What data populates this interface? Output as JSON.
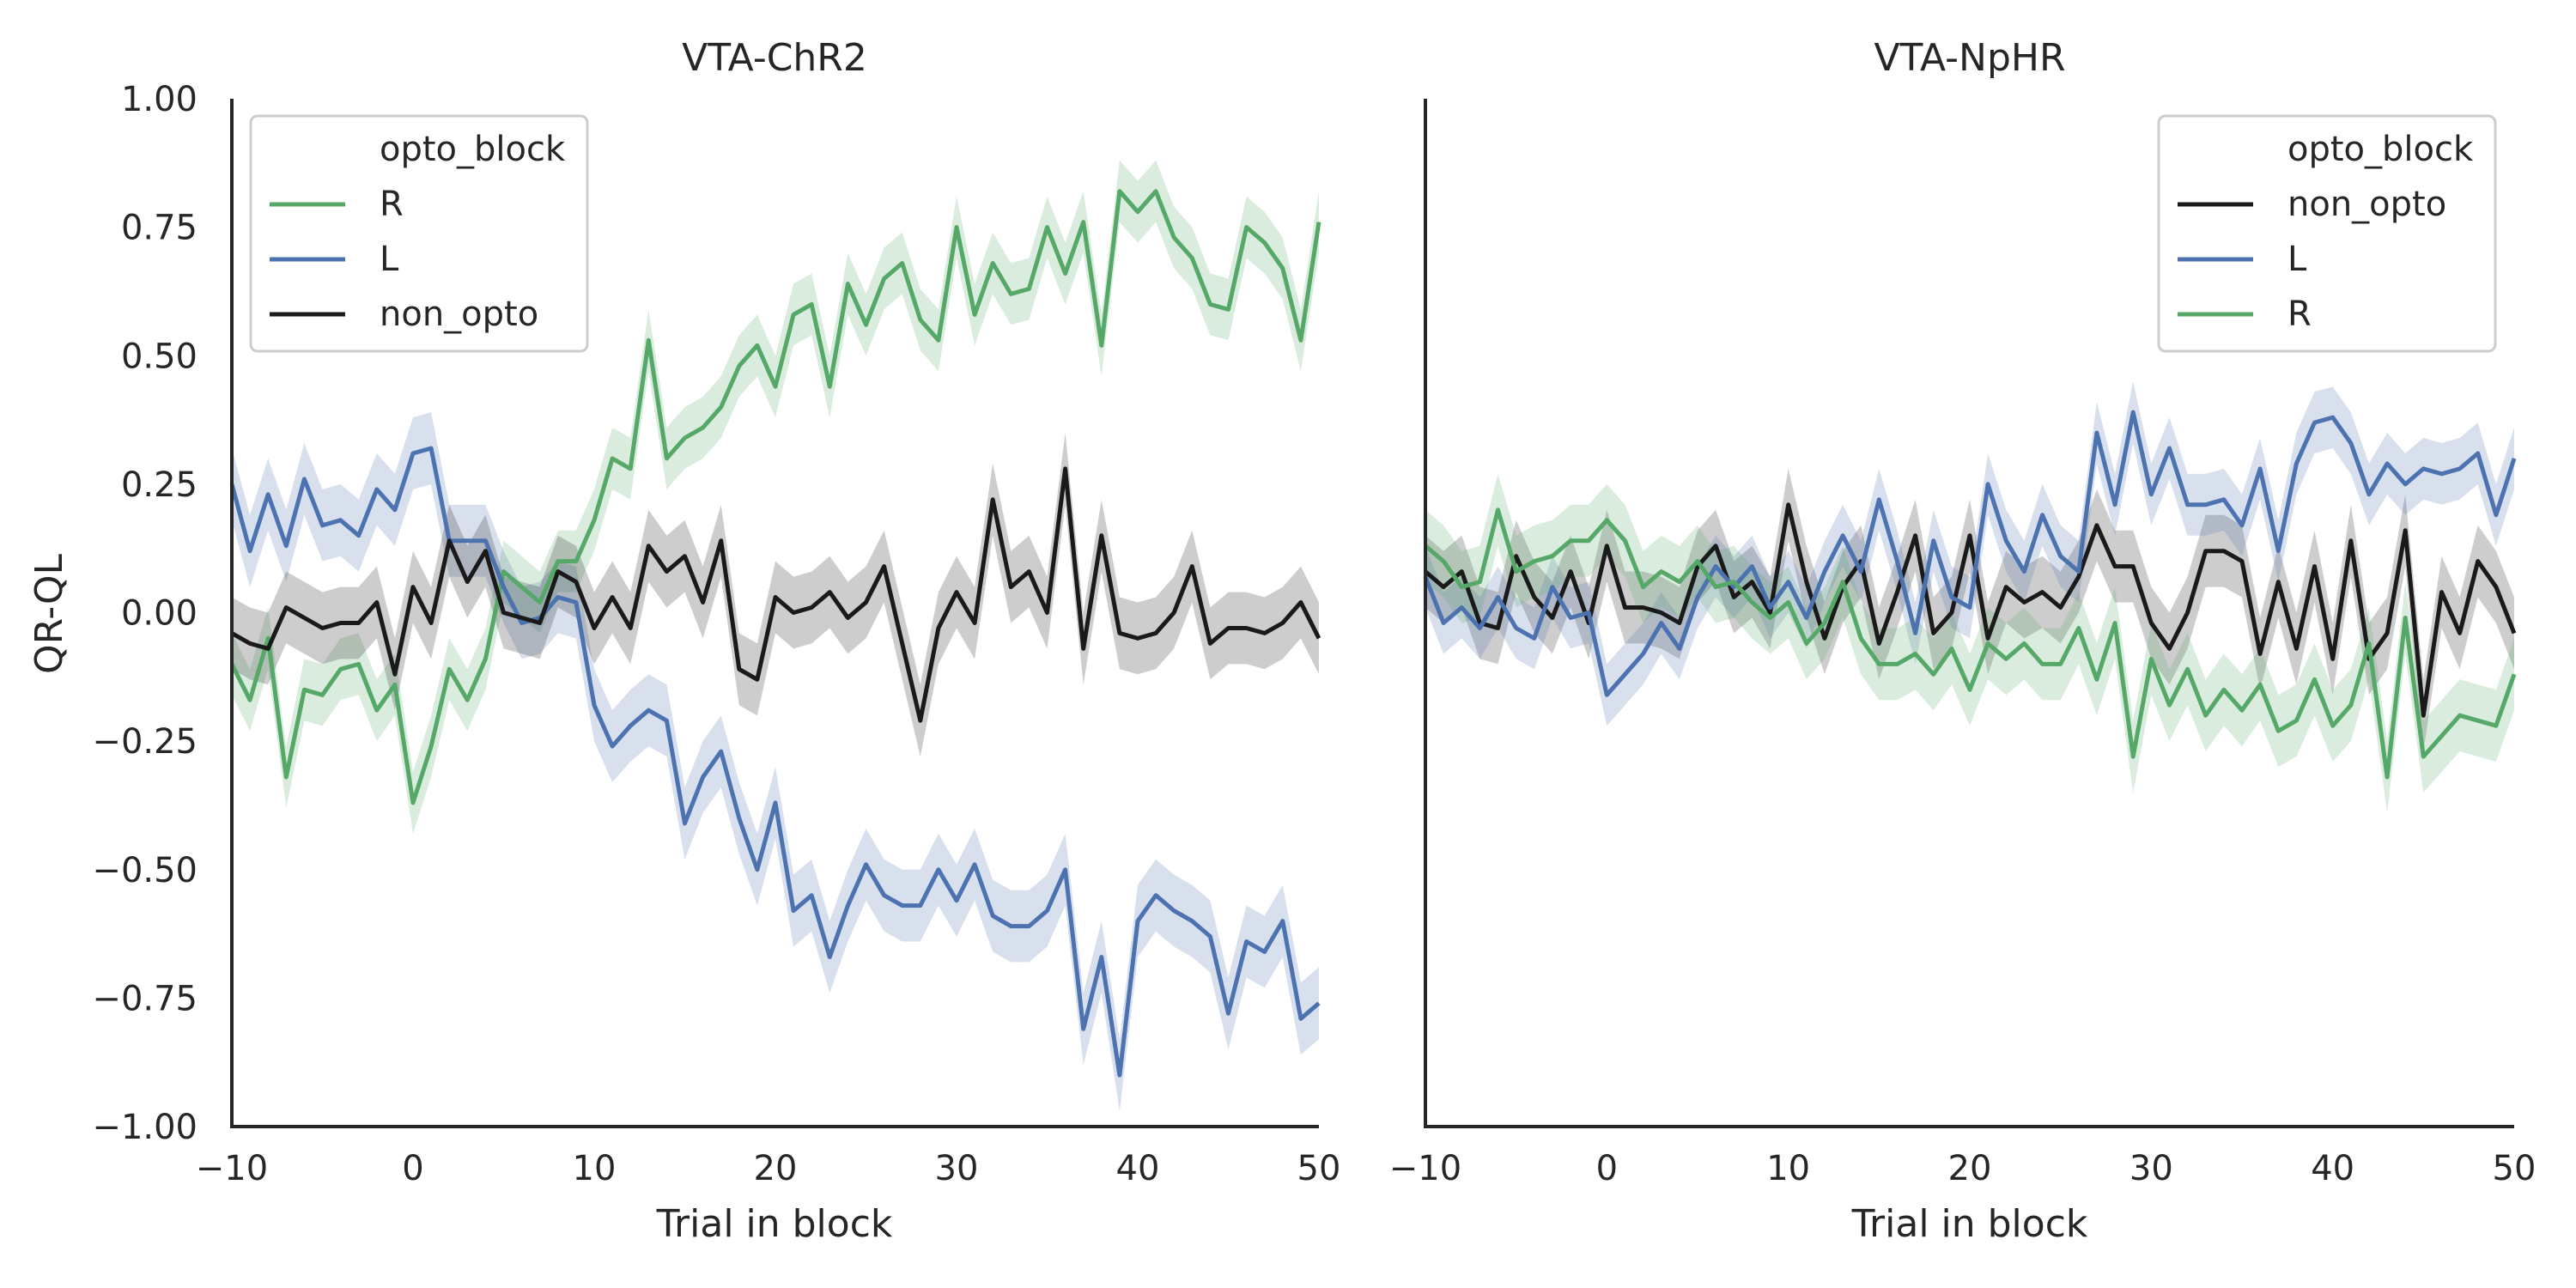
{
  "figure": {
    "ylabel": "QR-QL",
    "xlabel": "Trial in block",
    "legend_title": "opto_block",
    "x_ticks": [
      "−10",
      "0",
      "10",
      "20",
      "30",
      "40",
      "50"
    ],
    "y_ticks": [
      "1.00",
      "0.75",
      "0.50",
      "0.25",
      "0.00",
      "−0.25",
      "−0.50",
      "−0.75",
      "−1.00"
    ]
  },
  "colors": {
    "R": "#55a868",
    "L": "#4c72b0",
    "non_opto": "#1a1a1a",
    "axis": "#262626",
    "legend_border": "#cccccc"
  },
  "chart_data": [
    {
      "type": "line",
      "title": "VTA-ChR2",
      "xlabel": "Trial in block",
      "ylabel": "QR-QL",
      "xlim": [
        -10,
        50
      ],
      "ylim": [
        -1.0,
        1.0
      ],
      "grid": false,
      "legend_position": "top-left",
      "legend_title": "opto_block",
      "x_ticks": [
        -10,
        0,
        10,
        20,
        30,
        40,
        50
      ],
      "y_ticks": [
        -1.0,
        -0.75,
        -0.5,
        -0.25,
        0.0,
        0.25,
        0.5,
        0.75,
        1.0
      ],
      "x": [
        -10,
        -9,
        -8,
        -7,
        -6,
        -5,
        -4,
        -3,
        -2,
        -1,
        0,
        1,
        2,
        3,
        4,
        5,
        6,
        7,
        8,
        9,
        10,
        11,
        12,
        13,
        14,
        15,
        16,
        17,
        18,
        19,
        20,
        21,
        22,
        23,
        24,
        25,
        26,
        27,
        28,
        29,
        30,
        31,
        32,
        33,
        34,
        35,
        36,
        37,
        38,
        39,
        40,
        41,
        42,
        43,
        44,
        45,
        46,
        47,
        48,
        49,
        50
      ],
      "series": [
        {
          "name": "R",
          "color_key": "R",
          "values": [
            -0.1,
            -0.17,
            -0.05,
            -0.32,
            -0.15,
            -0.16,
            -0.11,
            -0.1,
            -0.19,
            -0.14,
            -0.37,
            -0.26,
            -0.11,
            -0.17,
            -0.09,
            0.08,
            0.05,
            0.02,
            0.1,
            0.1,
            0.18,
            0.3,
            0.28,
            0.53,
            0.3,
            0.34,
            0.36,
            0.4,
            0.48,
            0.52,
            0.44,
            0.58,
            0.6,
            0.44,
            0.64,
            0.56,
            0.65,
            0.68,
            0.57,
            0.53,
            0.75,
            0.58,
            0.68,
            0.62,
            0.63,
            0.75,
            0.66,
            0.76,
            0.52,
            0.82,
            0.78,
            0.82,
            0.73,
            0.69,
            0.6,
            0.59,
            0.75,
            0.72,
            0.67,
            0.53,
            0.76
          ],
          "band": 0.06
        },
        {
          "name": "L",
          "color_key": "L",
          "values": [
            0.25,
            0.12,
            0.23,
            0.13,
            0.26,
            0.17,
            0.18,
            0.15,
            0.24,
            0.2,
            0.31,
            0.32,
            0.14,
            0.14,
            0.14,
            0.05,
            -0.02,
            -0.01,
            0.03,
            0.02,
            -0.18,
            -0.26,
            -0.22,
            -0.19,
            -0.21,
            -0.41,
            -0.32,
            -0.27,
            -0.4,
            -0.5,
            -0.37,
            -0.58,
            -0.55,
            -0.67,
            -0.57,
            -0.49,
            -0.55,
            -0.57,
            -0.57,
            -0.5,
            -0.56,
            -0.49,
            -0.59,
            -0.61,
            -0.61,
            -0.58,
            -0.5,
            -0.81,
            -0.67,
            -0.9,
            -0.6,
            -0.55,
            -0.58,
            -0.6,
            -0.63,
            -0.78,
            -0.64,
            -0.66,
            -0.6,
            -0.79,
            -0.76
          ],
          "band": 0.07
        },
        {
          "name": "non_opto",
          "color_key": "non_opto",
          "values": [
            -0.04,
            -0.06,
            -0.07,
            0.01,
            -0.01,
            -0.03,
            -0.02,
            -0.02,
            0.02,
            -0.12,
            0.05,
            -0.02,
            0.14,
            0.06,
            0.12,
            0.0,
            -0.01,
            -0.02,
            0.08,
            0.06,
            -0.03,
            0.03,
            -0.03,
            0.13,
            0.08,
            0.11,
            0.02,
            0.14,
            -0.11,
            -0.13,
            0.03,
            0.0,
            0.01,
            0.04,
            -0.01,
            0.02,
            0.09,
            -0.06,
            -0.21,
            -0.03,
            0.04,
            -0.02,
            0.22,
            0.05,
            0.08,
            0.0,
            0.28,
            -0.07,
            0.15,
            -0.04,
            -0.05,
            -0.04,
            0.0,
            0.09,
            -0.06,
            -0.03,
            -0.03,
            -0.04,
            -0.02,
            0.02,
            -0.05
          ],
          "band": 0.07
        }
      ]
    },
    {
      "type": "line",
      "title": "VTA-NpHR",
      "xlabel": "Trial in block",
      "ylabel": "",
      "xlim": [
        -10,
        50
      ],
      "ylim": [
        -1.0,
        1.0
      ],
      "grid": false,
      "legend_position": "top-right",
      "legend_title": "opto_block",
      "x_ticks": [
        -10,
        0,
        10,
        20,
        30,
        40,
        50
      ],
      "x": [
        -10,
        -9,
        -8,
        -7,
        -6,
        -5,
        -4,
        -3,
        -2,
        -1,
        0,
        1,
        2,
        3,
        4,
        5,
        6,
        7,
        8,
        9,
        10,
        11,
        12,
        13,
        14,
        15,
        16,
        17,
        18,
        19,
        20,
        21,
        22,
        23,
        24,
        25,
        26,
        27,
        28,
        29,
        30,
        31,
        32,
        33,
        34,
        35,
        36,
        37,
        38,
        39,
        40,
        41,
        42,
        43,
        44,
        45,
        46,
        47,
        48,
        49,
        50
      ],
      "series": [
        {
          "name": "non_opto",
          "color_key": "non_opto",
          "values": [
            0.08,
            0.05,
            0.08,
            -0.02,
            -0.03,
            0.11,
            0.03,
            -0.01,
            0.08,
            -0.02,
            0.13,
            0.01,
            0.01,
            0.0,
            -0.02,
            0.09,
            0.13,
            0.03,
            0.06,
            0.0,
            0.21,
            0.06,
            -0.05,
            0.05,
            0.1,
            -0.06,
            0.04,
            0.15,
            -0.04,
            0.0,
            0.15,
            -0.05,
            0.05,
            0.02,
            0.04,
            0.01,
            0.07,
            0.17,
            0.09,
            0.09,
            -0.02,
            -0.07,
            0.0,
            0.12,
            0.12,
            0.1,
            -0.08,
            0.06,
            -0.07,
            0.09,
            -0.09,
            0.14,
            -0.09,
            -0.04,
            0.16,
            -0.2,
            0.04,
            -0.04,
            0.1,
            0.05,
            -0.04
          ],
          "band": 0.07
        },
        {
          "name": "L",
          "color_key": "L",
          "values": [
            0.07,
            -0.02,
            0.01,
            -0.03,
            0.03,
            -0.03,
            -0.05,
            0.05,
            -0.01,
            0.0,
            -0.16,
            -0.12,
            -0.08,
            -0.02,
            -0.07,
            0.03,
            0.09,
            0.05,
            0.09,
            0.01,
            0.06,
            -0.01,
            0.08,
            0.15,
            0.08,
            0.22,
            0.1,
            -0.04,
            0.14,
            0.03,
            0.01,
            0.25,
            0.14,
            0.08,
            0.19,
            0.11,
            0.08,
            0.35,
            0.21,
            0.39,
            0.23,
            0.32,
            0.21,
            0.21,
            0.22,
            0.17,
            0.28,
            0.12,
            0.29,
            0.37,
            0.38,
            0.33,
            0.23,
            0.29,
            0.25,
            0.28,
            0.27,
            0.28,
            0.31,
            0.19,
            0.3
          ],
          "band": 0.06
        },
        {
          "name": "R",
          "color_key": "R",
          "values": [
            0.13,
            0.1,
            0.05,
            0.06,
            0.2,
            0.08,
            0.1,
            0.11,
            0.14,
            0.14,
            0.18,
            0.14,
            0.05,
            0.08,
            0.06,
            0.1,
            0.05,
            0.06,
            0.02,
            -0.01,
            0.02,
            -0.06,
            -0.02,
            0.06,
            -0.05,
            -0.1,
            -0.1,
            -0.08,
            -0.12,
            -0.07,
            -0.15,
            -0.06,
            -0.09,
            -0.06,
            -0.1,
            -0.1,
            -0.03,
            -0.13,
            -0.02,
            -0.28,
            -0.09,
            -0.18,
            -0.11,
            -0.2,
            -0.15,
            -0.19,
            -0.14,
            -0.23,
            -0.21,
            -0.13,
            -0.22,
            -0.18,
            -0.06,
            -0.32,
            -0.01,
            -0.28,
            -0.24,
            -0.2,
            -0.21,
            -0.22,
            -0.12
          ],
          "band": 0.07
        }
      ]
    }
  ]
}
